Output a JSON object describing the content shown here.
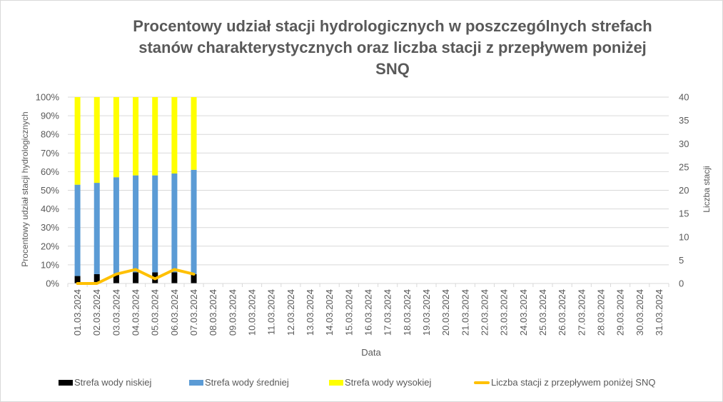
{
  "chart_data": {
    "type": "bar",
    "subtype": "stacked-100-bar-with-secondary-line",
    "title": "Procentowy udział stacji hydrologicznych w poszczególnych strefach stanów charakterystycznych oraz liczba stacji z przepływem poniżej SNQ",
    "title_lines": [
      "Procentowy udział stacji hydrologicznych w poszczególnych strefach",
      "stanów charakterystycznych oraz liczba stacji z przepływem poniżej",
      "SNQ"
    ],
    "xlabel": "Data",
    "ylabel": "Procentowy udział stacji hydrologicznych",
    "ylabel_right": "Liczba stacji",
    "ylim": [
      0,
      100
    ],
    "ylim_right": [
      0,
      40
    ],
    "yticks": [
      "0%",
      "10%",
      "20%",
      "30%",
      "40%",
      "50%",
      "60%",
      "70%",
      "80%",
      "90%",
      "100%"
    ],
    "yticks_right": [
      "0",
      "5",
      "10",
      "15",
      "20",
      "25",
      "30",
      "35",
      "40"
    ],
    "grid": true,
    "legend_position": "bottom",
    "categories": [
      "01.03.2024",
      "02.03.2024",
      "03.03.2024",
      "04.03.2024",
      "05.03.2024",
      "06.03.2024",
      "07.03.2024",
      "08.03.2024",
      "09.03.2024",
      "10.03.2024",
      "11.03.2024",
      "12.03.2024",
      "13.03.2024",
      "14.03.2024",
      "15.03.2024",
      "16.03.2024",
      "17.03.2024",
      "18.03.2024",
      "19.03.2024",
      "20.03.2024",
      "21.03.2024",
      "22.03.2024",
      "23.03.2024",
      "24.03.2024",
      "25.03.2024",
      "26.03.2024",
      "27.03.2024",
      "28.03.2024",
      "29.03.2024",
      "30.03.2024",
      "31.03.2024"
    ],
    "series": [
      {
        "name": "Strefa wody niskiej",
        "type": "bar",
        "axis": "left",
        "color": "#000000",
        "values": [
          4,
          5,
          5,
          6,
          6,
          6,
          5,
          null,
          null,
          null,
          null,
          null,
          null,
          null,
          null,
          null,
          null,
          null,
          null,
          null,
          null,
          null,
          null,
          null,
          null,
          null,
          null,
          null,
          null,
          null,
          null
        ]
      },
      {
        "name": "Strefa wody średniej",
        "type": "bar",
        "axis": "left",
        "color": "#5b9bd5",
        "values": [
          49,
          49,
          52,
          52,
          52,
          53,
          56,
          null,
          null,
          null,
          null,
          null,
          null,
          null,
          null,
          null,
          null,
          null,
          null,
          null,
          null,
          null,
          null,
          null,
          null,
          null,
          null,
          null,
          null,
          null,
          null
        ]
      },
      {
        "name": "Strefa wody wysokiej",
        "type": "bar",
        "axis": "left",
        "color": "#ffff00",
        "values": [
          47,
          46,
          43,
          42,
          42,
          41,
          39,
          null,
          null,
          null,
          null,
          null,
          null,
          null,
          null,
          null,
          null,
          null,
          null,
          null,
          null,
          null,
          null,
          null,
          null,
          null,
          null,
          null,
          null,
          null,
          null
        ]
      },
      {
        "name": "Liczba stacji z przepływem poniżej SNQ",
        "type": "line",
        "axis": "right",
        "color": "#ffc000",
        "values": [
          0,
          0,
          2,
          3,
          1,
          3,
          2,
          null,
          null,
          null,
          null,
          null,
          null,
          null,
          null,
          null,
          null,
          null,
          null,
          null,
          null,
          null,
          null,
          null,
          null,
          null,
          null,
          null,
          null,
          null,
          null
        ]
      }
    ]
  }
}
